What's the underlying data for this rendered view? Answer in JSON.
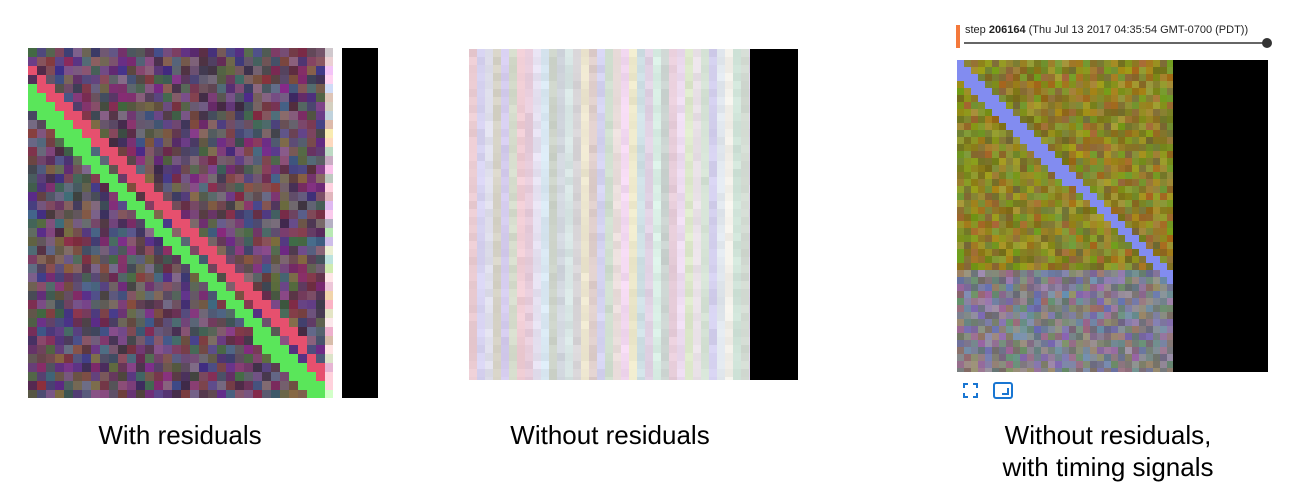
{
  "panels": [
    {
      "caption": [
        "With residuals"
      ]
    },
    {
      "caption": [
        "Without residuals"
      ]
    },
    {
      "caption": [
        "Without residuals,",
        "with timing signals"
      ],
      "header": {
        "step_label": "step",
        "step_value": "206164",
        "timestamp": "(Thu Jul 13 2017 04:35:54 GMT-0700 (PDT))"
      }
    }
  ]
}
